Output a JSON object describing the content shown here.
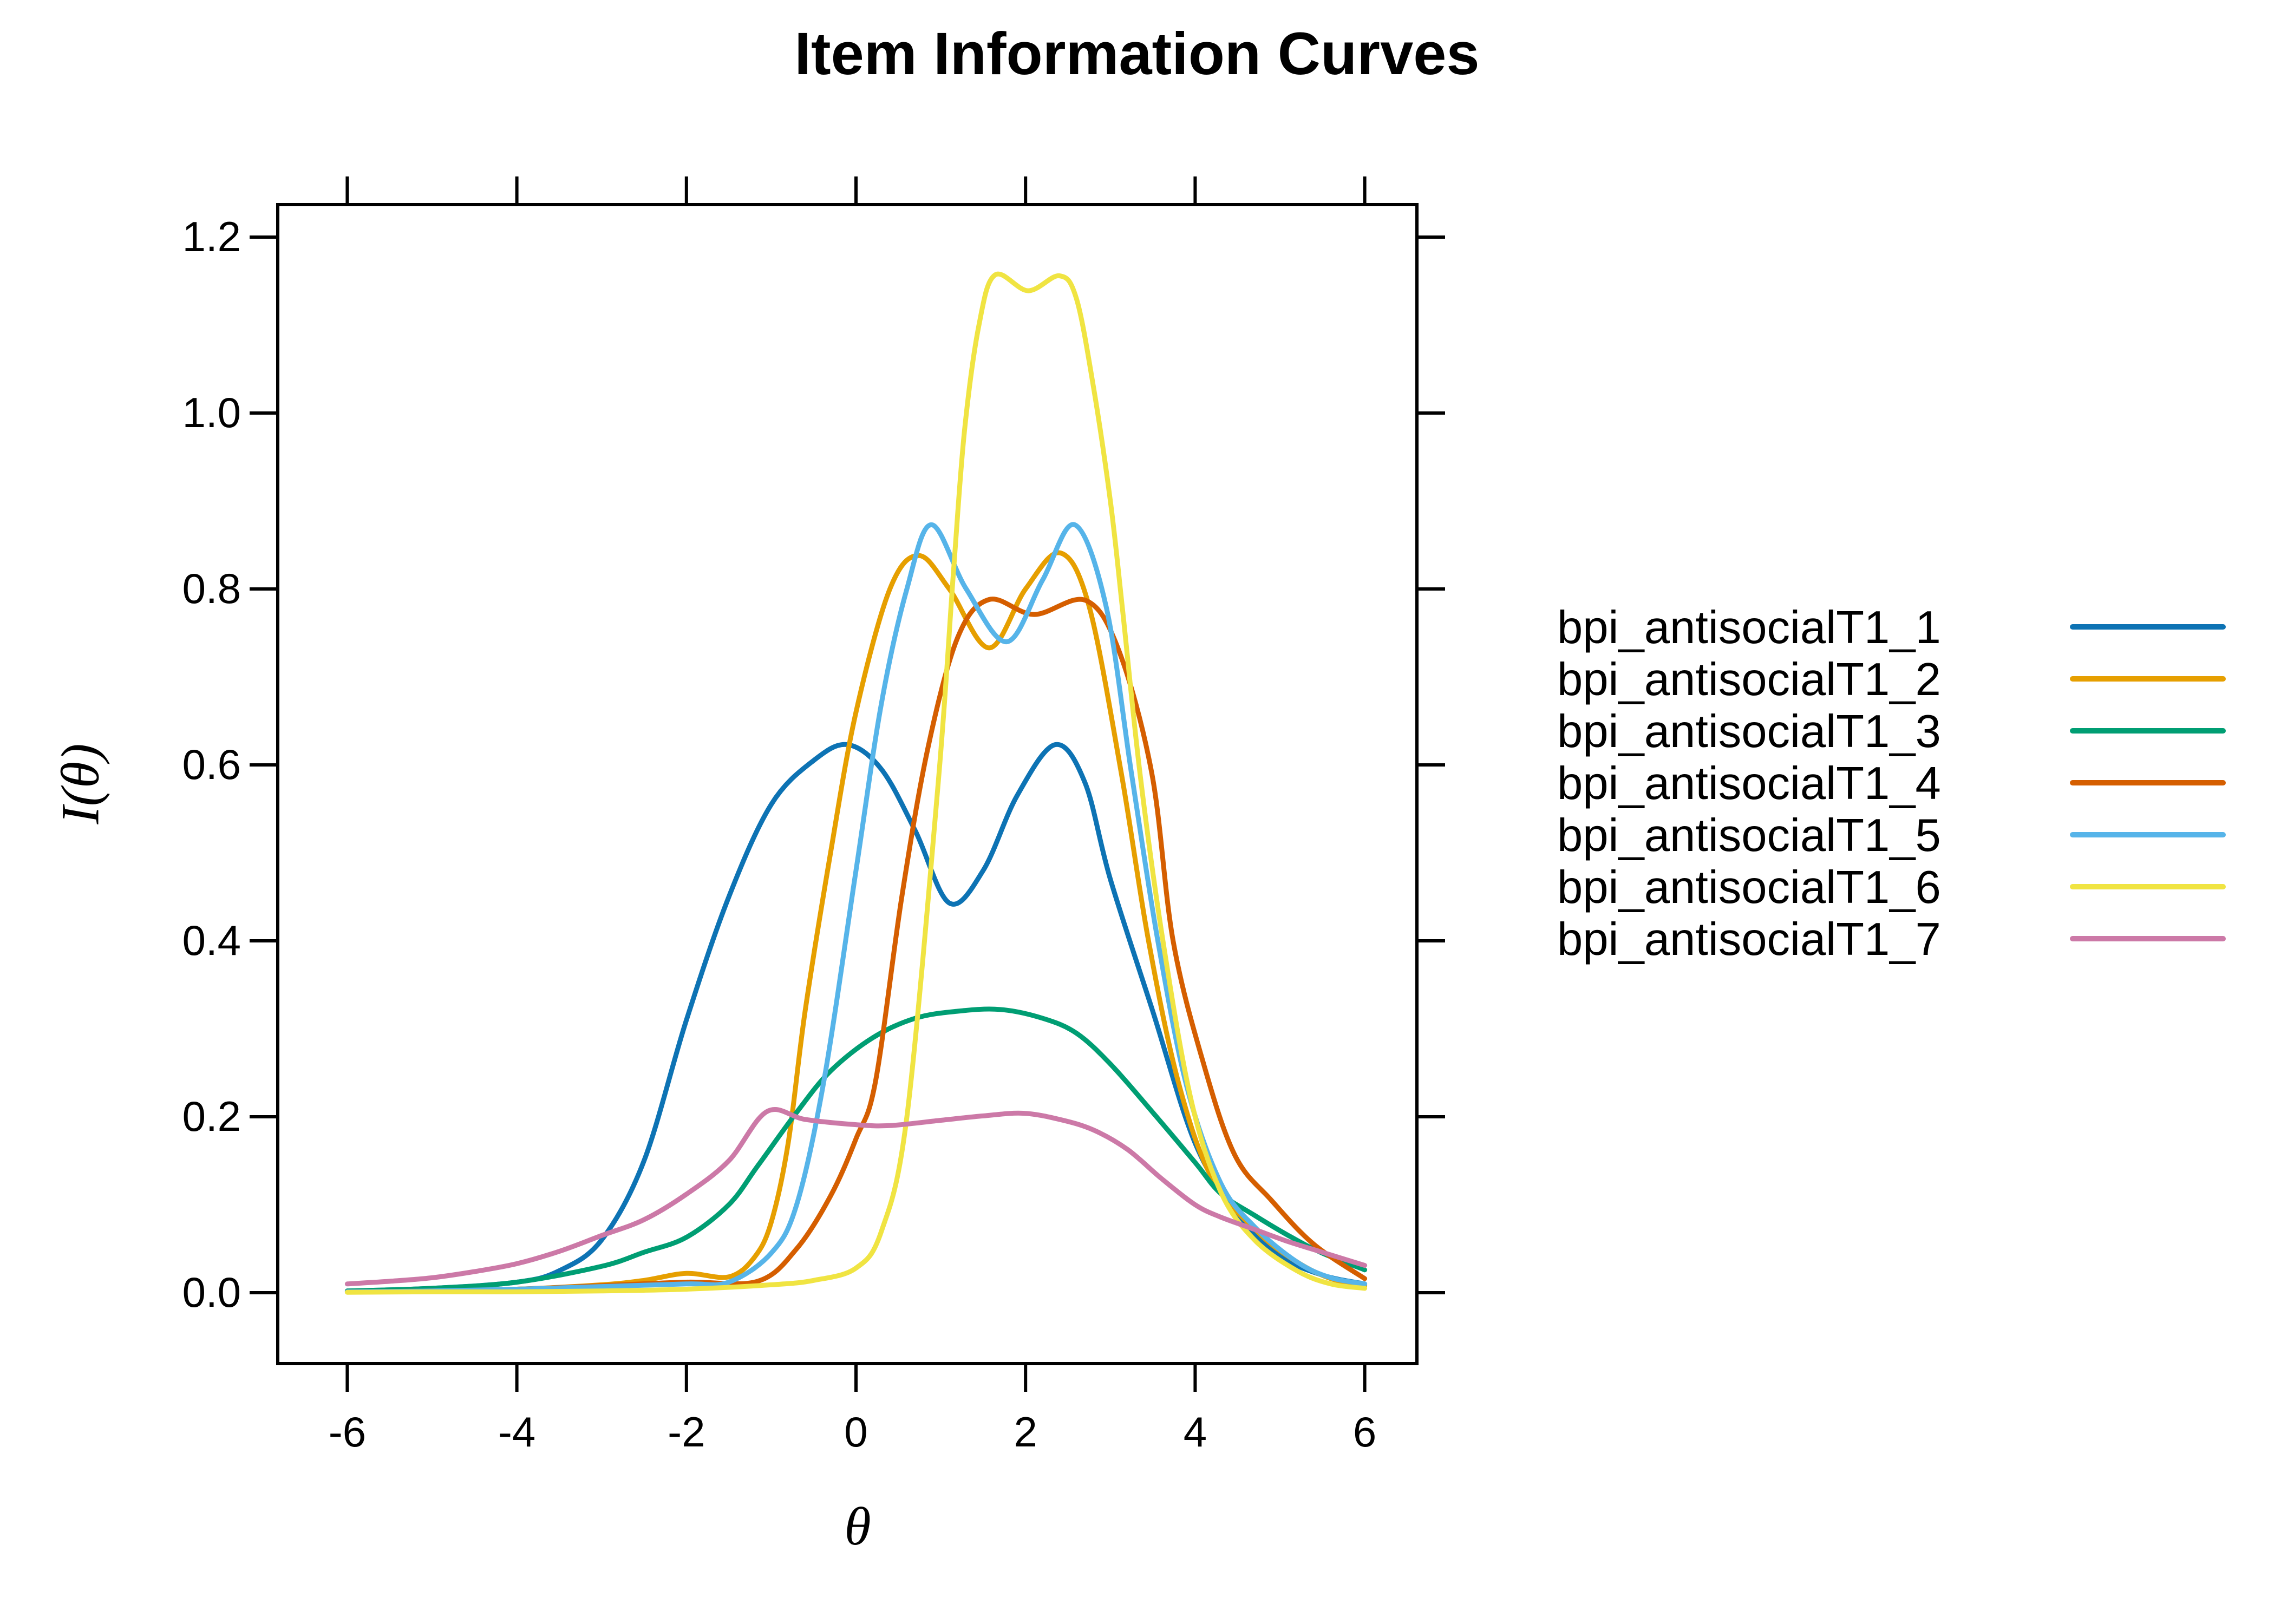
{
  "title": "Item Information Curves",
  "axes": {
    "xlabel": "θ",
    "ylabel": "I(θ)",
    "x_tick_values": [
      -6,
      -4,
      -2,
      0,
      2,
      4,
      6
    ],
    "x_tick_labels": [
      "-6",
      "-4",
      "-2",
      "0",
      "2",
      "4",
      "6"
    ],
    "y_tick_values": [
      0.0,
      0.2,
      0.4,
      0.6,
      0.8,
      1.0,
      1.2
    ],
    "y_tick_labels": [
      "0.0",
      "0.2",
      "0.4",
      "0.6",
      "0.8",
      "1.0",
      "1.2"
    ],
    "grid": false,
    "box": true,
    "axis_color": "#000000"
  },
  "legend": {
    "position": "right",
    "items": [
      {
        "label": "bpi_antisocialT1_1",
        "color": "#0D73B4"
      },
      {
        "label": "bpi_antisocialT1_2",
        "color": "#E69F00"
      },
      {
        "label": "bpi_antisocialT1_3",
        "color": "#009E73"
      },
      {
        "label": "bpi_antisocialT1_4",
        "color": "#D55E00"
      },
      {
        "label": "bpi_antisocialT1_5",
        "color": "#56B4E9"
      },
      {
        "label": "bpi_antisocialT1_6",
        "color": "#F0E442"
      },
      {
        "label": "bpi_antisocialT1_7",
        "color": "#CC79A7"
      }
    ]
  },
  "chart_data": {
    "type": "line",
    "title": "Item Information Curves",
    "xlabel": "θ",
    "ylabel": "I(θ)",
    "xlim": [
      -6.8,
      6.6
    ],
    "ylim": [
      -0.08,
      1.24
    ],
    "legend_position": "right",
    "series": [
      {
        "name": "bpi_antisocialT1_1",
        "color": "#0D73B4",
        "points": [
          [
            -6,
            0.002
          ],
          [
            -5,
            0.005
          ],
          [
            -4,
            0.012
          ],
          [
            -3.5,
            0.025
          ],
          [
            -3,
            0.06
          ],
          [
            -2.5,
            0.15
          ],
          [
            -2,
            0.31
          ],
          [
            -1.5,
            0.45
          ],
          [
            -1,
            0.555
          ],
          [
            -0.5,
            0.605
          ],
          [
            -0.1,
            0.623
          ],
          [
            0.3,
            0.595
          ],
          [
            0.7,
            0.525
          ],
          [
            1.1,
            0.443
          ],
          [
            1.5,
            0.48
          ],
          [
            1.9,
            0.565
          ],
          [
            2.35,
            0.623
          ],
          [
            2.7,
            0.58
          ],
          [
            3,
            0.47
          ],
          [
            3.5,
            0.32
          ],
          [
            4,
            0.17
          ],
          [
            4.5,
            0.09
          ],
          [
            5,
            0.042
          ],
          [
            5.5,
            0.02
          ],
          [
            6,
            0.01
          ]
        ]
      },
      {
        "name": "bpi_antisocialT1_2",
        "color": "#E69F00",
        "points": [
          [
            -6,
            0.001
          ],
          [
            -5,
            0.002
          ],
          [
            -4,
            0.004
          ],
          [
            -3,
            0.009
          ],
          [
            -2.5,
            0.014
          ],
          [
            -2,
            0.022
          ],
          [
            -1.5,
            0.018
          ],
          [
            -1.2,
            0.04
          ],
          [
            -1,
            0.08
          ],
          [
            -0.8,
            0.17
          ],
          [
            -0.6,
            0.32
          ],
          [
            -0.3,
            0.5
          ],
          [
            0,
            0.66
          ],
          [
            0.4,
            0.8
          ],
          [
            0.74,
            0.838
          ],
          [
            1.1,
            0.8
          ],
          [
            1.57,
            0.733
          ],
          [
            2,
            0.8
          ],
          [
            2.41,
            0.841
          ],
          [
            2.75,
            0.78
          ],
          [
            3.13,
            0.59
          ],
          [
            3.45,
            0.4
          ],
          [
            3.8,
            0.24
          ],
          [
            4.2,
            0.13
          ],
          [
            4.75,
            0.068
          ],
          [
            5.2,
            0.035
          ],
          [
            5.6,
            0.016
          ],
          [
            6,
            0.008
          ]
        ]
      },
      {
        "name": "bpi_antisocialT1_3",
        "color": "#009E73",
        "points": [
          [
            -6,
            0.002
          ],
          [
            -5,
            0.005
          ],
          [
            -4,
            0.012
          ],
          [
            -3,
            0.03
          ],
          [
            -2.5,
            0.046
          ],
          [
            -2,
            0.063
          ],
          [
            -1.5,
            0.1
          ],
          [
            -1.16,
            0.144
          ],
          [
            -0.7,
            0.205
          ],
          [
            -0.3,
            0.252
          ],
          [
            0.2,
            0.29
          ],
          [
            0.7,
            0.312
          ],
          [
            1.2,
            0.32
          ],
          [
            1.7,
            0.322
          ],
          [
            2.2,
            0.312
          ],
          [
            2.6,
            0.295
          ],
          [
            3,
            0.26
          ],
          [
            3.5,
            0.205
          ],
          [
            4,
            0.148
          ],
          [
            4.3,
            0.113
          ],
          [
            4.7,
            0.088
          ],
          [
            5.1,
            0.065
          ],
          [
            5.5,
            0.045
          ],
          [
            6,
            0.026
          ]
        ]
      },
      {
        "name": "bpi_antisocialT1_4",
        "color": "#D55E00",
        "points": [
          [
            -6,
            0.001
          ],
          [
            -5,
            0.002
          ],
          [
            -4,
            0.004
          ],
          [
            -3,
            0.008
          ],
          [
            -2,
            0.012
          ],
          [
            -1.16,
            0.013
          ],
          [
            -0.7,
            0.05
          ],
          [
            -0.3,
            0.11
          ],
          [
            0,
            0.175
          ],
          [
            0.23,
            0.24
          ],
          [
            0.54,
            0.45
          ],
          [
            0.85,
            0.62
          ],
          [
            1.2,
            0.745
          ],
          [
            1.57,
            0.788
          ],
          [
            2.1,
            0.771
          ],
          [
            2.71,
            0.787
          ],
          [
            3.1,
            0.73
          ],
          [
            3.49,
            0.59
          ],
          [
            3.74,
            0.4
          ],
          [
            4.1,
            0.26
          ],
          [
            4.47,
            0.156
          ],
          [
            4.9,
            0.105
          ],
          [
            5.4,
            0.055
          ],
          [
            6,
            0.016
          ]
        ]
      },
      {
        "name": "bpi_antisocialT1_5",
        "color": "#56B4E9",
        "points": [
          [
            -6,
            0.001
          ],
          [
            -5,
            0.002
          ],
          [
            -4,
            0.004
          ],
          [
            -3,
            0.007
          ],
          [
            -2,
            0.01
          ],
          [
            -1.5,
            0.012
          ],
          [
            -1,
            0.045
          ],
          [
            -0.7,
            0.1
          ],
          [
            -0.38,
            0.24
          ],
          [
            0,
            0.48
          ],
          [
            0.3,
            0.67
          ],
          [
            0.6,
            0.8
          ],
          [
            0.89,
            0.873
          ],
          [
            1.3,
            0.8
          ],
          [
            1.78,
            0.74
          ],
          [
            2.2,
            0.81
          ],
          [
            2.58,
            0.873
          ],
          [
            2.95,
            0.78
          ],
          [
            3.25,
            0.59
          ],
          [
            3.56,
            0.4
          ],
          [
            3.9,
            0.235
          ],
          [
            4.3,
            0.125
          ],
          [
            4.7,
            0.075
          ],
          [
            5.2,
            0.035
          ],
          [
            5.6,
            0.017
          ],
          [
            6,
            0.01
          ]
        ]
      },
      {
        "name": "bpi_antisocialT1_6",
        "color": "#F0E442",
        "points": [
          [
            -6,
            0.0005
          ],
          [
            -5,
            0.001
          ],
          [
            -4,
            0.001
          ],
          [
            -3,
            0.002
          ],
          [
            -2,
            0.004
          ],
          [
            -1,
            0.009
          ],
          [
            -0.5,
            0.014
          ],
          [
            0,
            0.028
          ],
          [
            0.3,
            0.07
          ],
          [
            0.6,
            0.2
          ],
          [
            0.97,
            0.58
          ],
          [
            1.15,
            0.82
          ],
          [
            1.28,
            0.98
          ],
          [
            1.45,
            1.1
          ],
          [
            1.64,
            1.157
          ],
          [
            2.03,
            1.139
          ],
          [
            2.4,
            1.156
          ],
          [
            2.6,
            1.13
          ],
          [
            2.8,
            1.03
          ],
          [
            3,
            0.9
          ],
          [
            3.14,
            0.78
          ],
          [
            3.35,
            0.59
          ],
          [
            3.62,
            0.4
          ],
          [
            3.95,
            0.22
          ],
          [
            4.3,
            0.115
          ],
          [
            4.7,
            0.06
          ],
          [
            5.2,
            0.025
          ],
          [
            5.6,
            0.01
          ],
          [
            6,
            0.005
          ]
        ]
      },
      {
        "name": "bpi_antisocialT1_7",
        "color": "#CC79A7",
        "points": [
          [
            -6,
            0.01
          ],
          [
            -5.5,
            0.013
          ],
          [
            -5,
            0.017
          ],
          [
            -4.5,
            0.024
          ],
          [
            -4,
            0.033
          ],
          [
            -3.5,
            0.047
          ],
          [
            -3,
            0.065
          ],
          [
            -2.5,
            0.083
          ],
          [
            -2,
            0.112
          ],
          [
            -1.5,
            0.15
          ],
          [
            -1.05,
            0.206
          ],
          [
            -0.6,
            0.197
          ],
          [
            0,
            0.191
          ],
          [
            0.4,
            0.19
          ],
          [
            1,
            0.196
          ],
          [
            1.5,
            0.201
          ],
          [
            1.97,
            0.204
          ],
          [
            2.4,
            0.197
          ],
          [
            2.8,
            0.185
          ],
          [
            3.2,
            0.163
          ],
          [
            3.6,
            0.13
          ],
          [
            4,
            0.1
          ],
          [
            4.3,
            0.086
          ],
          [
            4.7,
            0.072
          ],
          [
            5.1,
            0.058
          ],
          [
            5.5,
            0.046
          ],
          [
            6,
            0.031
          ]
        ]
      }
    ]
  }
}
